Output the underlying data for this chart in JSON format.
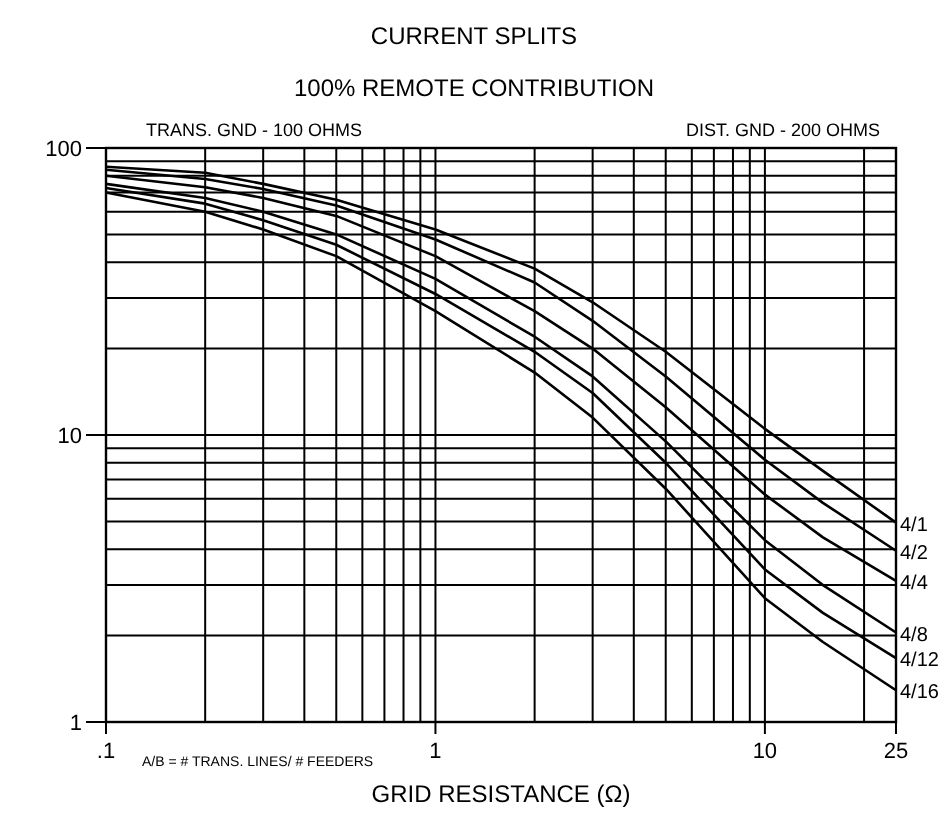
{
  "chart_data": {
    "type": "line",
    "title": "CURRENT SPLITS",
    "subtitle": "100% REMOTE CONTRIBUTION",
    "xlabel": "GRID RESISTANCE (Ω)",
    "annotations": [
      "TRANS. GND - 100 OHMS",
      "DIST. GND - 200 OHMS",
      "A/B = # TRANS. LINES/ # FEEDERS"
    ],
    "x": [
      0.1,
      0.2,
      0.3,
      0.5,
      1,
      2,
      3,
      5,
      10,
      15,
      25
    ],
    "series": [
      {
        "name": "4/1",
        "color": "#000000",
        "values": [
          86,
          82,
          75,
          66,
          52,
          38,
          29,
          19.5,
          10.5,
          7.5,
          4.95
        ]
      },
      {
        "name": "4/2",
        "color": "#000000",
        "values": [
          84,
          78,
          72,
          63,
          48,
          34,
          25,
          16,
          8.2,
          5.8,
          3.95
        ]
      },
      {
        "name": "4/4",
        "color": "#000000",
        "values": [
          80,
          73,
          67,
          58,
          42,
          27,
          20,
          12.5,
          6.2,
          4.4,
          3.1
        ]
      },
      {
        "name": "4/8",
        "color": "#000000",
        "values": [
          75,
          67,
          60,
          50,
          35,
          22,
          16,
          9.5,
          4.3,
          3.0,
          2.05
        ]
      },
      {
        "name": "4/12",
        "color": "#000000",
        "values": [
          72.6,
          64,
          56,
          46,
          31,
          19.5,
          14,
          8.0,
          3.4,
          2.4,
          1.67
        ]
      },
      {
        "name": "4/16",
        "color": "#000000",
        "values": [
          70,
          60,
          52,
          42,
          27,
          16.5,
          11.5,
          6.5,
          2.7,
          1.9,
          1.29
        ]
      }
    ],
    "log": "xy",
    "grid": true,
    "legend": false,
    "marker": "none",
    "line_style": "solid",
    "xlim": [
      0.1,
      25
    ],
    "ylim": [
      1,
      100
    ],
    "xticks": [
      {
        "value": 0.1,
        "label": ".1"
      },
      {
        "value": 0.2,
        "label": null
      },
      {
        "value": 0.3,
        "label": null
      },
      {
        "value": 0.4,
        "label": null
      },
      {
        "value": 0.5,
        "label": null
      },
      {
        "value": 0.6,
        "label": null
      },
      {
        "value": 0.7,
        "label": null
      },
      {
        "value": 0.8,
        "label": null
      },
      {
        "value": 0.9,
        "label": null
      },
      1,
      {
        "value": 2,
        "label": null
      },
      {
        "value": 3,
        "label": null
      },
      {
        "value": 4,
        "label": null
      },
      {
        "value": 5,
        "label": null
      },
      {
        "value": 6,
        "label": null
      },
      {
        "value": 7,
        "label": null
      },
      {
        "value": 8,
        "label": null
      },
      {
        "value": 9,
        "label": null
      },
      10,
      {
        "value": 20,
        "label": null
      },
      25
    ],
    "yticks": [
      1,
      {
        "value": 2,
        "label": null
      },
      {
        "value": 3,
        "label": null
      },
      {
        "value": 4,
        "label": null
      },
      {
        "value": 5,
        "label": null
      },
      {
        "value": 6,
        "label": null
      },
      {
        "value": 7,
        "label": null
      },
      {
        "value": 8,
        "label": null
      },
      {
        "value": 9,
        "label": null
      },
      10,
      {
        "value": 20,
        "label": null
      },
      {
        "value": 30,
        "label": null
      },
      {
        "value": 40,
        "label": null
      },
      {
        "value": 50,
        "label": null
      },
      {
        "value": 60,
        "label": null
      },
      {
        "value": 70,
        "label": null
      },
      {
        "value": 80,
        "label": null
      },
      {
        "value": 90,
        "label": null
      },
      100
    ]
  }
}
